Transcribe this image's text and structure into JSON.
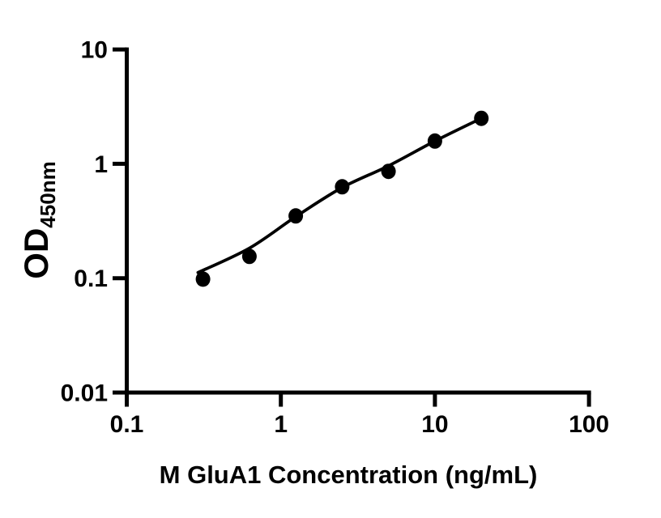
{
  "figure": {
    "background": "#ffffff",
    "xlabel": "M GluA1 Concentration (ng/mL)",
    "ylabel_main": "OD",
    "ylabel_sub": "450nm"
  },
  "chart_data": {
    "type": "scatter",
    "title": "",
    "xlabel": "M GluA1 Concentration (ng/mL)",
    "ylabel": "OD450nm",
    "x_scale": "log",
    "y_scale": "log",
    "xlim": [
      0.1,
      100
    ],
    "ylim": [
      0.01,
      10
    ],
    "x_ticks": {
      "values": [
        0.1,
        1,
        10,
        100
      ],
      "labels": [
        "0.1",
        "1",
        "10",
        "100"
      ]
    },
    "y_ticks": {
      "values": [
        10,
        1,
        0.1,
        0.01
      ],
      "labels": [
        "10",
        "1",
        "0.1",
        "0.01"
      ]
    },
    "grid": false,
    "legend": "none",
    "colors": {
      "marker": "#000000",
      "line": "#000000",
      "axis": "#000000",
      "text": "#000000"
    },
    "series": [
      {
        "name": "standard-data-points",
        "type": "scatter",
        "x": [
          0.3125,
          0.625,
          1.25,
          2.5,
          5,
          10,
          20
        ],
        "y": [
          0.098,
          0.155,
          0.35,
          0.63,
          0.86,
          1.58,
          2.5
        ]
      },
      {
        "name": "fitted-standard-curve",
        "type": "line",
        "x": [
          0.29,
          0.625,
          1.25,
          2.5,
          5,
          10,
          20
        ],
        "y": [
          0.112,
          0.183,
          0.345,
          0.62,
          0.96,
          1.58,
          2.5
        ]
      }
    ]
  }
}
